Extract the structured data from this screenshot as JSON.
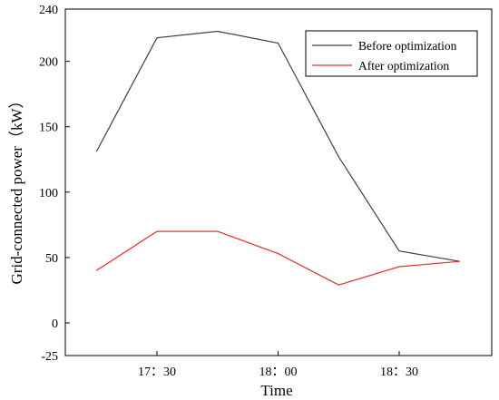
{
  "chart_data": {
    "type": "line",
    "title": "",
    "xlabel": "Time",
    "ylabel": "Grid-connected power（kW）",
    "ylim": [
      -25,
      240
    ],
    "y_ticks": [
      "240",
      "200",
      "150",
      "100",
      "50",
      "0",
      "-25"
    ],
    "y_tick_values": [
      240,
      200,
      150,
      100,
      50,
      0,
      -25
    ],
    "x_ticks": [
      "17：30",
      "18：00",
      "18：30"
    ],
    "x_tick_times": [
      "17:30",
      "18:00",
      "18:30"
    ],
    "x": [
      "17:15",
      "17:30",
      "17:45",
      "18:00",
      "18:15",
      "18:30",
      "18:45"
    ],
    "series": [
      {
        "name": "Before optimization",
        "color": "#404040",
        "values": [
          131,
          218,
          223,
          214,
          127,
          55,
          47
        ]
      },
      {
        "name": "After optimization",
        "color": "#e8312d",
        "values": [
          40,
          70,
          70,
          53,
          29,
          43,
          47
        ]
      }
    ],
    "grid": false,
    "legend_position": "top-right"
  }
}
